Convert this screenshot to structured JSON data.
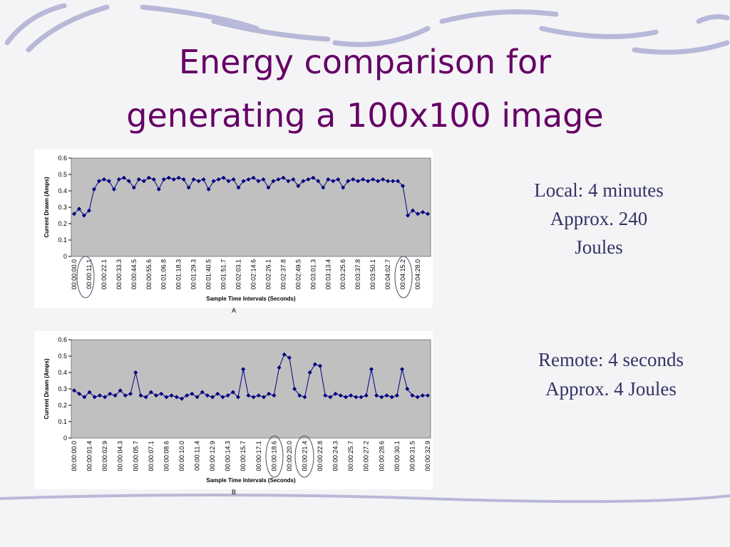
{
  "title": [
    "Energy comparison for",
    "generating a 100x100 image"
  ],
  "notes": [
    [
      "Local: 4 minutes",
      "Approx. 240",
      "Joules"
    ],
    [
      "Remote: 4 seconds",
      "Approx. 4 Joules"
    ]
  ],
  "chart_data": [
    {
      "type": "line",
      "caption": "A",
      "x_label": "Sample Time Intervals (Seconds)",
      "y_label": "Current Drawn (Amps)",
      "color": "#000080",
      "ylim": [
        0,
        0.6
      ],
      "yticks": [
        0,
        0.1,
        0.2,
        0.3,
        0.4,
        0.5,
        0.6
      ],
      "categories": [
        "00:00:00.0",
        null,
        null,
        "00:00:11.1",
        null,
        null,
        "00:00:22.1",
        null,
        null,
        "00:00:33.3",
        null,
        null,
        "00:00:44.5",
        null,
        null,
        "00:00:55.6",
        null,
        null,
        "00:01:06.8",
        null,
        null,
        "00:01:18.3",
        null,
        null,
        "00:01:29.3",
        null,
        null,
        "00:01:40.5",
        null,
        null,
        "00:01:51.7",
        null,
        null,
        "00:02:03.1",
        null,
        null,
        "00:02:14.6",
        null,
        null,
        "00:02:26.1",
        null,
        null,
        "00:02:37.8",
        null,
        null,
        "00:02:49.5",
        null,
        null,
        "00:03:01.3",
        null,
        null,
        "00:03:13.4",
        null,
        null,
        "00:03:25.6",
        null,
        null,
        "00:03:37.8",
        null,
        null,
        "00:03:50.1",
        null,
        null,
        "00:04:02.7",
        null,
        null,
        "00:04:15.2",
        null,
        null,
        "00:04:28.0",
        null,
        null
      ],
      "values": [
        0.26,
        0.29,
        0.25,
        0.28,
        0.41,
        0.46,
        0.47,
        0.46,
        0.41,
        0.47,
        0.48,
        0.46,
        0.42,
        0.47,
        0.46,
        0.48,
        0.47,
        0.41,
        0.47,
        0.48,
        0.47,
        0.48,
        0.47,
        0.42,
        0.47,
        0.46,
        0.47,
        0.41,
        0.46,
        0.47,
        0.48,
        0.46,
        0.47,
        0.42,
        0.46,
        0.47,
        0.48,
        0.46,
        0.47,
        0.42,
        0.46,
        0.47,
        0.48,
        0.46,
        0.47,
        0.43,
        0.46,
        0.47,
        0.48,
        0.46,
        0.42,
        0.47,
        0.46,
        0.47,
        0.42,
        0.46,
        0.47,
        0.46,
        0.47,
        0.46,
        0.47,
        0.46,
        0.47,
        0.46,
        0.46,
        0.46,
        0.43,
        0.25,
        0.28,
        0.26,
        0.27,
        0.26
      ]
    },
    {
      "type": "line",
      "caption": "B",
      "x_label": "Sample Time Intervals (Seconds)",
      "y_label": "Current Drawn (Amps)",
      "color": "#000080",
      "ylim": [
        0,
        0.6
      ],
      "yticks": [
        0,
        0.1,
        0.2,
        0.3,
        0.4,
        0.5,
        0.6
      ],
      "categories": [
        "00:00:00.0",
        null,
        null,
        "00:00:01.4",
        null,
        null,
        "00:00:02.9",
        null,
        null,
        "00:00:04.3",
        null,
        null,
        "00:00:05.7",
        null,
        null,
        "00:00:07.1",
        null,
        null,
        "00:00:08.6",
        null,
        null,
        "00:00:10.0",
        null,
        null,
        "00:00:11.4",
        null,
        null,
        "00:00:12.9",
        null,
        null,
        "00:00:14.3",
        null,
        null,
        "00:00:15.7",
        null,
        null,
        "00:00:17.1",
        null,
        null,
        "00:00:18.6",
        null,
        null,
        "00:00:20.0",
        null,
        null,
        "00:00:21.4",
        null,
        null,
        "00:00:22.8",
        null,
        null,
        "00:00:24.3",
        null,
        null,
        "00:00:25.7",
        null,
        null,
        "00:00:27.2",
        null,
        null,
        "00:00:28.6",
        null,
        null,
        "00:00:30.1",
        null,
        null,
        "00:00:31.5",
        null,
        null,
        "00:00:32.9"
      ],
      "values": [
        0.29,
        0.27,
        0.25,
        0.28,
        0.25,
        0.26,
        0.25,
        0.27,
        0.26,
        0.29,
        0.26,
        0.27,
        0.4,
        0.26,
        0.25,
        0.28,
        0.26,
        0.27,
        0.25,
        0.26,
        0.25,
        0.24,
        0.26,
        0.27,
        0.25,
        0.28,
        0.26,
        0.25,
        0.27,
        0.25,
        0.26,
        0.28,
        0.25,
        0.42,
        0.26,
        0.25,
        0.26,
        0.25,
        0.27,
        0.26,
        0.43,
        0.51,
        0.49,
        0.3,
        0.26,
        0.25,
        0.4,
        0.45,
        0.44,
        0.26,
        0.25,
        0.27,
        0.26,
        0.25,
        0.26,
        0.25,
        0.25,
        0.26,
        0.42,
        0.26,
        0.25,
        0.26,
        0.25,
        0.26,
        0.42,
        0.3,
        0.26,
        0.25,
        0.26,
        0.26
      ]
    }
  ]
}
